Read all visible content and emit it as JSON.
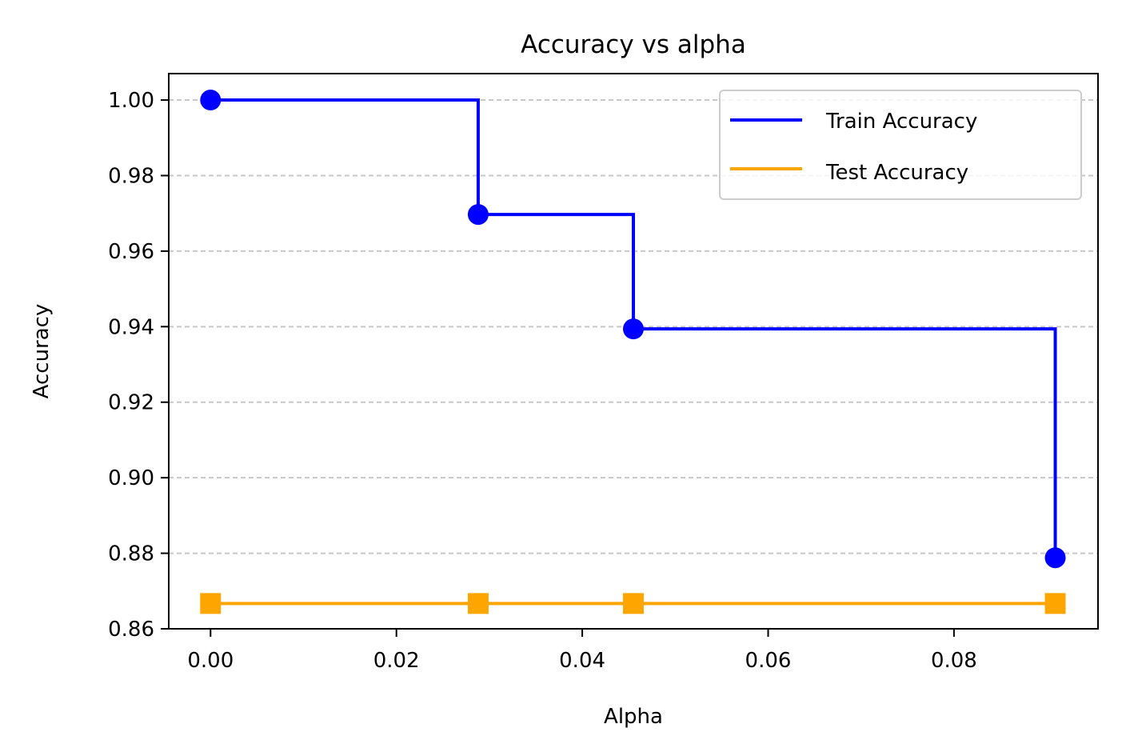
{
  "chart_data": {
    "type": "line",
    "title": "Accuracy vs alpha",
    "xlabel": "Alpha",
    "ylabel": "Accuracy",
    "xlim": [
      -0.0045,
      0.0955
    ],
    "ylim": [
      0.86,
      1.007
    ],
    "x_ticks": [
      0.0,
      0.02,
      0.04,
      0.06,
      0.08
    ],
    "x_tick_labels": [
      "0.00",
      "0.02",
      "0.04",
      "0.06",
      "0.08"
    ],
    "y_ticks": [
      0.86,
      0.88,
      0.9,
      0.92,
      0.94,
      0.96,
      0.98,
      1.0
    ],
    "y_tick_labels": [
      "0.86",
      "0.88",
      "0.90",
      "0.92",
      "0.94",
      "0.96",
      "0.98",
      "1.00"
    ],
    "grid": "y-dashed",
    "legend_position": "top-right",
    "series": [
      {
        "name": "Train Accuracy",
        "color": "#0000ff",
        "marker": "circle",
        "drawstyle": "steps-post",
        "x": [
          0.0,
          0.0288,
          0.0455,
          0.0909
        ],
        "y": [
          1.0,
          0.9697,
          0.9394,
          0.8788
        ]
      },
      {
        "name": "Test Accuracy",
        "color": "#ffa500",
        "marker": "square",
        "drawstyle": "steps-post",
        "x": [
          0.0,
          0.0288,
          0.0455,
          0.0909
        ],
        "y": [
          0.8667,
          0.8667,
          0.8667,
          0.8667
        ]
      }
    ]
  }
}
